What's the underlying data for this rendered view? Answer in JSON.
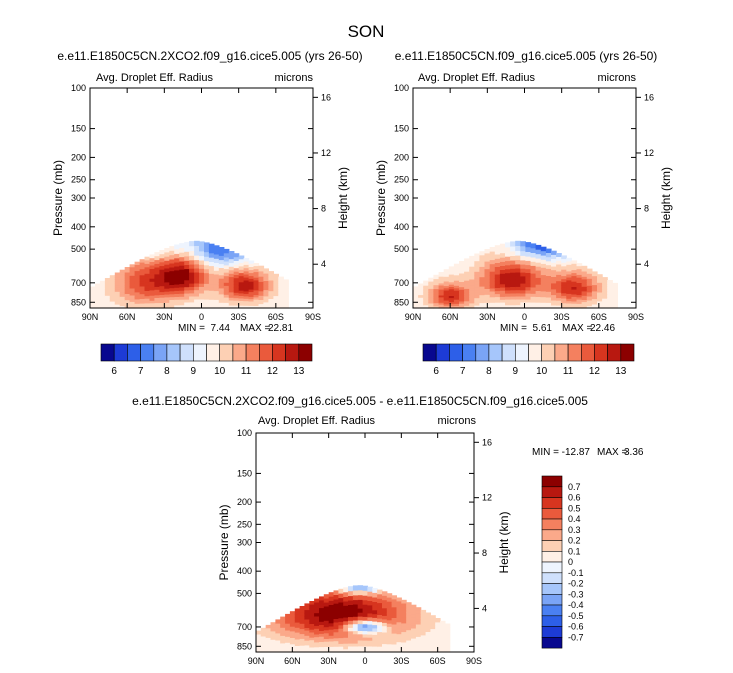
{
  "title": "SON",
  "chart_data": [
    {
      "type": "heatmap",
      "panel_title": "e.e11.E1850C5CN.2XCO2.f09_g16.cice5.005 (yrs 26-50)",
      "left_label": "Avg. Droplet Eff. Radius",
      "right_label": "microns",
      "ylabel": "Pressure (mb)",
      "y2label": "Height (km)",
      "yticks": [
        "100",
        "150",
        "200",
        "250",
        "300",
        "400",
        "500",
        "700",
        "850"
      ],
      "y2ticks": [
        "16",
        "12",
        "8",
        "4"
      ],
      "xticks": [
        "90N",
        "60N",
        "30N",
        "0",
        "30S",
        "60S",
        "90S"
      ],
      "min_label": "MIN =",
      "min_value": "7.44",
      "max_label": "MAX =",
      "max_value": "22.81",
      "colorbar": {
        "labels": [
          "6",
          "7",
          "8",
          "9",
          "10",
          "11",
          "12",
          "13"
        ]
      },
      "field": {
        "lat_extent": [
          90,
          -70
        ],
        "top_pressure": 460,
        "blobs": [
          {
            "lat": 15,
            "p": 650,
            "value": 13,
            "sigma_lat": 14,
            "sigma_p": 90
          },
          {
            "lat": -35,
            "p": 720,
            "value": 12.8,
            "sigma_lat": 14,
            "sigma_p": 80
          },
          {
            "lat": 45,
            "p": 700,
            "value": 12,
            "sigma_lat": 18,
            "sigma_p": 120
          },
          {
            "lat": -15,
            "p": 500,
            "value": 7,
            "sigma_lat": 20,
            "sigma_p": 60
          },
          {
            "lat": 40,
            "p": 480,
            "value": 8,
            "sigma_lat": 12,
            "sigma_p": 50
          }
        ]
      }
    },
    {
      "type": "heatmap",
      "panel_title": "e.e11.E1850C5CN.f09_g16.cice5.005 (yrs 26-50)",
      "left_label": "Avg. Droplet Eff. Radius",
      "right_label": "microns",
      "ylabel": "Pressure (mb)",
      "y2label": "Height (km)",
      "yticks": [
        "100",
        "150",
        "200",
        "250",
        "300",
        "400",
        "500",
        "700",
        "850"
      ],
      "y2ticks": [
        "16",
        "12",
        "8",
        "4"
      ],
      "xticks": [
        "90N",
        "60N",
        "30N",
        "0",
        "30S",
        "60S",
        "90S"
      ],
      "min_label": "MIN =",
      "min_value": "5.61",
      "max_label": "MAX =",
      "max_value": "22.46",
      "colorbar": {
        "labels": [
          "6",
          "7",
          "8",
          "9",
          "10",
          "11",
          "12",
          "13"
        ]
      },
      "field": {
        "lat_extent": [
          90,
          -75
        ],
        "top_pressure": 460,
        "blobs": [
          {
            "lat": 10,
            "p": 680,
            "value": 13,
            "sigma_lat": 18,
            "sigma_p": 90
          },
          {
            "lat": -40,
            "p": 740,
            "value": 12.5,
            "sigma_lat": 14,
            "sigma_p": 80
          },
          {
            "lat": 60,
            "p": 800,
            "value": 12.5,
            "sigma_lat": 12,
            "sigma_p": 70
          },
          {
            "lat": -15,
            "p": 480,
            "value": 6.5,
            "sigma_lat": 16,
            "sigma_p": 50
          }
        ]
      }
    },
    {
      "type": "heatmap",
      "panel_title": "e.e11.E1850C5CN.2XCO2.f09_g16.cice5.005 - e.e11.E1850C5CN.f09_g16.cice5.005",
      "left_label": "Avg. Droplet Eff. Radius",
      "right_label": "microns",
      "ylabel": "Pressure (mb)",
      "y2label": "Height (km)",
      "yticks": [
        "100",
        "150",
        "200",
        "250",
        "300",
        "400",
        "500",
        "700",
        "850"
      ],
      "y2ticks": [
        "16",
        "12",
        "8",
        "4"
      ],
      "xticks": [
        "90N",
        "60N",
        "30N",
        "0",
        "30S",
        "60S",
        "90S"
      ],
      "min_label": "MIN =",
      "min_value": "-12.87",
      "max_label": "MAX =",
      "max_value": "3.36",
      "colorbar": {
        "labels": [
          "0.7",
          "0.6",
          "0.5",
          "0.4",
          "0.3",
          "0.2",
          "0.1",
          "0",
          "-0.1",
          "-0.2",
          "-0.3",
          "-0.4",
          "-0.5",
          "-0.6",
          "-0.7"
        ]
      },
      "field": {
        "lat_extent": [
          90,
          -70
        ],
        "top_pressure": 460,
        "blobs": [
          {
            "lat": 20,
            "p": 620,
            "value": 0.8,
            "sigma_lat": 40,
            "sigma_p": 120
          },
          {
            "lat": 0,
            "p": 700,
            "value": -0.9,
            "sigma_lat": 12,
            "sigma_p": 35
          },
          {
            "lat": 5,
            "p": 470,
            "value": -0.6,
            "sigma_lat": 15,
            "sigma_p": 25
          }
        ]
      }
    }
  ]
}
